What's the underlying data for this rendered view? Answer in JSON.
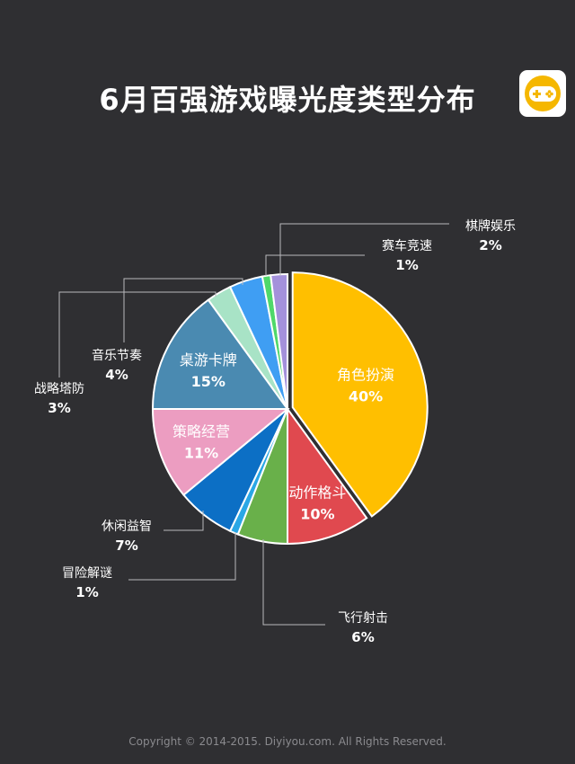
{
  "title": "6月百强游戏曝光度类型分布",
  "copyright": "Copyright © 2014-2015. Diyiyou.com. All Rights Reserved.",
  "logo": {
    "icon": "gamepad-icon",
    "color": "#f5b700"
  },
  "chart_data": {
    "type": "pie",
    "slices": [
      {
        "label": "角色扮演",
        "value": 40,
        "pct": "40%",
        "color": "#ffbf00"
      },
      {
        "label": "动作格斗",
        "value": 10,
        "pct": "10%",
        "color": "#e0494f"
      },
      {
        "label": "飞行射击",
        "value": 6,
        "pct": "6%",
        "color": "#69b04a"
      },
      {
        "label": "冒险解谜",
        "value": 1,
        "pct": "1%",
        "color": "#2aa7e6"
      },
      {
        "label": "休闲益智",
        "value": 7,
        "pct": "7%",
        "color": "#0c6fc5"
      },
      {
        "label": "策略经营",
        "value": 11,
        "pct": "11%",
        "color": "#ec9dc1"
      },
      {
        "label": "桌游卡牌",
        "value": 15,
        "pct": "15%",
        "color": "#4a8ab1"
      },
      {
        "label": "战略塔防",
        "value": 3,
        "pct": "3%",
        "color": "#a8e3c6"
      },
      {
        "label": "音乐节奏",
        "value": 4,
        "pct": "4%",
        "color": "#3f9ef3"
      },
      {
        "label": "赛车竞速",
        "value": 1,
        "pct": "1%",
        "color": "#4fd86a"
      },
      {
        "label": "棋牌娱乐",
        "value": 2,
        "pct": "2%",
        "color": "#a491db"
      }
    ]
  }
}
